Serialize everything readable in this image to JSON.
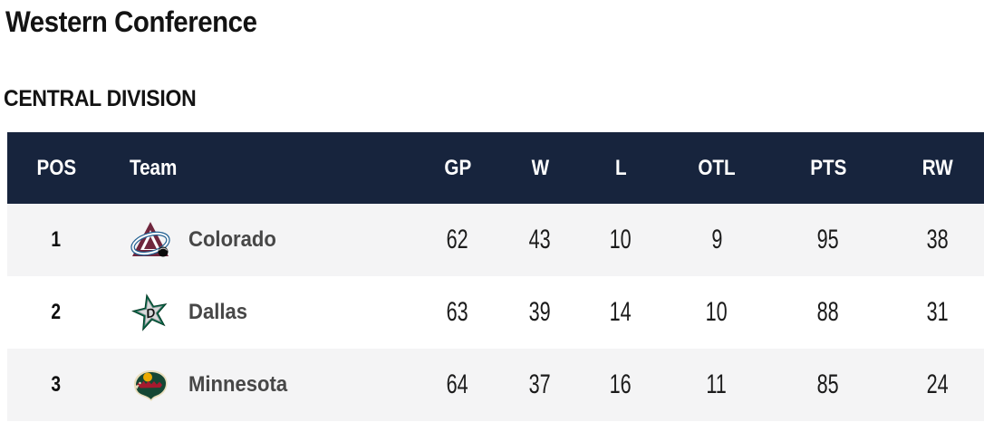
{
  "page": {
    "conference_title": "Western Conference",
    "division_title": "CENTRAL DIVISION"
  },
  "colors": {
    "header_bg": "#17243D",
    "header_text": "#FFFFFF",
    "row_bg": "#FFFFFF",
    "row_alt_bg": "#F4F4F5",
    "team_name_text": "#474747",
    "stat_text": "#1B1B1B"
  },
  "team_brand_colors": {
    "colorado": {
      "maroon": "#6F263D",
      "steel_blue": "#236192",
      "black": "#0B0B0B"
    },
    "dallas": {
      "green": "#006847",
      "silver": "#8A8D8F",
      "black": "#101010"
    },
    "minnesota": {
      "forest_green": "#154734",
      "iron_red": "#A6192E",
      "gold": "#EAAA00",
      "wheat": "#E8DDBB"
    }
  },
  "table": {
    "columns": [
      "POS",
      "Team",
      "GP",
      "W",
      "L",
      "OTL",
      "PTS",
      "RW"
    ],
    "rows": [
      {
        "pos": "1",
        "team": "Colorado",
        "logo": "colorado-avalanche-logo",
        "gp": "62",
        "w": "43",
        "l": "10",
        "otl": "9",
        "pts": "95",
        "rw": "38"
      },
      {
        "pos": "2",
        "team": "Dallas",
        "logo": "dallas-stars-logo",
        "gp": "63",
        "w": "39",
        "l": "14",
        "otl": "10",
        "pts": "88",
        "rw": "31"
      },
      {
        "pos": "3",
        "team": "Minnesota",
        "logo": "minnesota-wild-logo",
        "gp": "64",
        "w": "37",
        "l": "16",
        "otl": "11",
        "pts": "85",
        "rw": "24"
      }
    ]
  }
}
